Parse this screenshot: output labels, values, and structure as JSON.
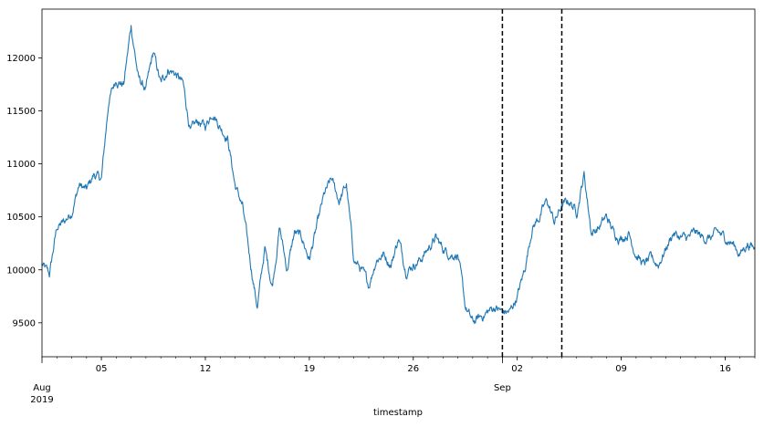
{
  "chart_data": {
    "type": "line",
    "title": "",
    "xlabel": "timestamp",
    "ylabel": "",
    "x_range": [
      "2019-08-01",
      "2019-09-18"
    ],
    "ylim": [
      9180,
      12460
    ],
    "y_ticks": [
      9500,
      10000,
      10500,
      11000,
      11500,
      12000
    ],
    "y_tick_labels": [
      "9500",
      "10000",
      "10500",
      "11000",
      "11500",
      "12000"
    ],
    "x_ticks": [
      {
        "date": "2019-08-01",
        "label": "Aug",
        "sublabel": "2019"
      },
      {
        "date": "2019-08-05",
        "label": "05"
      },
      {
        "date": "2019-08-12",
        "label": "12"
      },
      {
        "date": "2019-08-19",
        "label": "19"
      },
      {
        "date": "2019-08-26",
        "label": "26"
      },
      {
        "date": "2019-09-01",
        "label": "Sep"
      },
      {
        "date": "2019-09-02",
        "label": "02"
      },
      {
        "date": "2019-09-09",
        "label": "09"
      },
      {
        "date": "2019-09-16",
        "label": "16"
      }
    ],
    "grid": false,
    "legend": "none",
    "vlines": [
      {
        "date": "2019-09-01",
        "style": "dashed",
        "color": "#000000"
      },
      {
        "date": "2019-09-05",
        "style": "dashed",
        "color": "#000000"
      }
    ],
    "series": [
      {
        "color": "#1f77b4",
        "points": [
          [
            "2019-08-01",
            10050
          ],
          [
            "2019-08-01T12",
            9950
          ],
          [
            "2019-08-02",
            10400
          ],
          [
            "2019-08-02T12",
            10450
          ],
          [
            "2019-08-03",
            10550
          ],
          [
            "2019-08-03T12",
            10800
          ],
          [
            "2019-08-04",
            10750
          ],
          [
            "2019-08-04T12",
            10900
          ],
          [
            "2019-08-05",
            10850
          ],
          [
            "2019-08-05T12",
            11600
          ],
          [
            "2019-08-06",
            11800
          ],
          [
            "2019-08-06T12",
            11750
          ],
          [
            "2019-08-07",
            12300
          ],
          [
            "2019-08-07T12",
            11800
          ],
          [
            "2019-08-08",
            11700
          ],
          [
            "2019-08-08T12",
            12050
          ],
          [
            "2019-08-09",
            11750
          ],
          [
            "2019-08-09T12",
            11900
          ],
          [
            "2019-08-10",
            11850
          ],
          [
            "2019-08-10T12",
            11750
          ],
          [
            "2019-08-11",
            11300
          ],
          [
            "2019-08-11T12",
            11400
          ],
          [
            "2019-08-12",
            11350
          ],
          [
            "2019-08-12T12",
            11500
          ],
          [
            "2019-08-13",
            11350
          ],
          [
            "2019-08-13T12",
            11250
          ],
          [
            "2019-08-14",
            10800
          ],
          [
            "2019-08-14T12",
            10600
          ],
          [
            "2019-08-15",
            10100
          ],
          [
            "2019-08-15T12",
            9650
          ],
          [
            "2019-08-16",
            10200
          ],
          [
            "2019-08-16T12",
            9850
          ],
          [
            "2019-08-17",
            10400
          ],
          [
            "2019-08-17T12",
            10000
          ],
          [
            "2019-08-18",
            10350
          ],
          [
            "2019-08-18T12",
            10300
          ],
          [
            "2019-08-19",
            10100
          ],
          [
            "2019-08-19T12",
            10400
          ],
          [
            "2019-08-20",
            10700
          ],
          [
            "2019-08-20T12",
            10850
          ],
          [
            "2019-08-21",
            10650
          ],
          [
            "2019-08-21T12",
            10800
          ],
          [
            "2019-08-22",
            10100
          ],
          [
            "2019-08-22T12",
            10000
          ],
          [
            "2019-08-23",
            9850
          ],
          [
            "2019-08-23T12",
            10100
          ],
          [
            "2019-08-24",
            10150
          ],
          [
            "2019-08-24T12",
            10050
          ],
          [
            "2019-08-25",
            10300
          ],
          [
            "2019-08-25T12",
            10000
          ],
          [
            "2019-08-26",
            10050
          ],
          [
            "2019-08-26T12",
            10100
          ],
          [
            "2019-08-27",
            10200
          ],
          [
            "2019-08-27T12",
            10300
          ],
          [
            "2019-08-28",
            10200
          ],
          [
            "2019-08-28T12",
            10150
          ],
          [
            "2019-08-29",
            10150
          ],
          [
            "2019-08-29T12",
            9650
          ],
          [
            "2019-08-30",
            9500
          ],
          [
            "2019-08-30T12",
            9550
          ],
          [
            "2019-08-31",
            9600
          ],
          [
            "2019-08-31T12",
            9650
          ],
          [
            "2019-09-01",
            9600
          ],
          [
            "2019-09-01T12",
            9600
          ],
          [
            "2019-09-02",
            9750
          ],
          [
            "2019-09-02T12",
            10000
          ],
          [
            "2019-09-03",
            10400
          ],
          [
            "2019-09-03T12",
            10500
          ],
          [
            "2019-09-04",
            10650
          ],
          [
            "2019-09-04T12",
            10450
          ],
          [
            "2019-09-05",
            10600
          ],
          [
            "2019-09-05T12",
            10650
          ],
          [
            "2019-09-06",
            10550
          ],
          [
            "2019-09-06T12",
            10900
          ],
          [
            "2019-09-07",
            10350
          ],
          [
            "2019-09-07T12",
            10400
          ],
          [
            "2019-09-08",
            10500
          ],
          [
            "2019-09-08T12",
            10350
          ],
          [
            "2019-09-09",
            10300
          ],
          [
            "2019-09-09T12",
            10350
          ],
          [
            "2019-09-10",
            10150
          ],
          [
            "2019-09-10T12",
            10050
          ],
          [
            "2019-09-11",
            10100
          ],
          [
            "2019-09-11T12",
            10050
          ],
          [
            "2019-09-12",
            10200
          ],
          [
            "2019-09-12T12",
            10350
          ],
          [
            "2019-09-13",
            10300
          ],
          [
            "2019-09-13T12",
            10300
          ],
          [
            "2019-09-14",
            10350
          ],
          [
            "2019-09-14T12",
            10300
          ],
          [
            "2019-09-15",
            10300
          ],
          [
            "2019-09-15T12",
            10350
          ],
          [
            "2019-09-16",
            10300
          ],
          [
            "2019-09-16T12",
            10250
          ],
          [
            "2019-09-17",
            10150
          ],
          [
            "2019-09-17T12",
            10250
          ],
          [
            "2019-09-18",
            10200
          ]
        ]
      }
    ]
  }
}
